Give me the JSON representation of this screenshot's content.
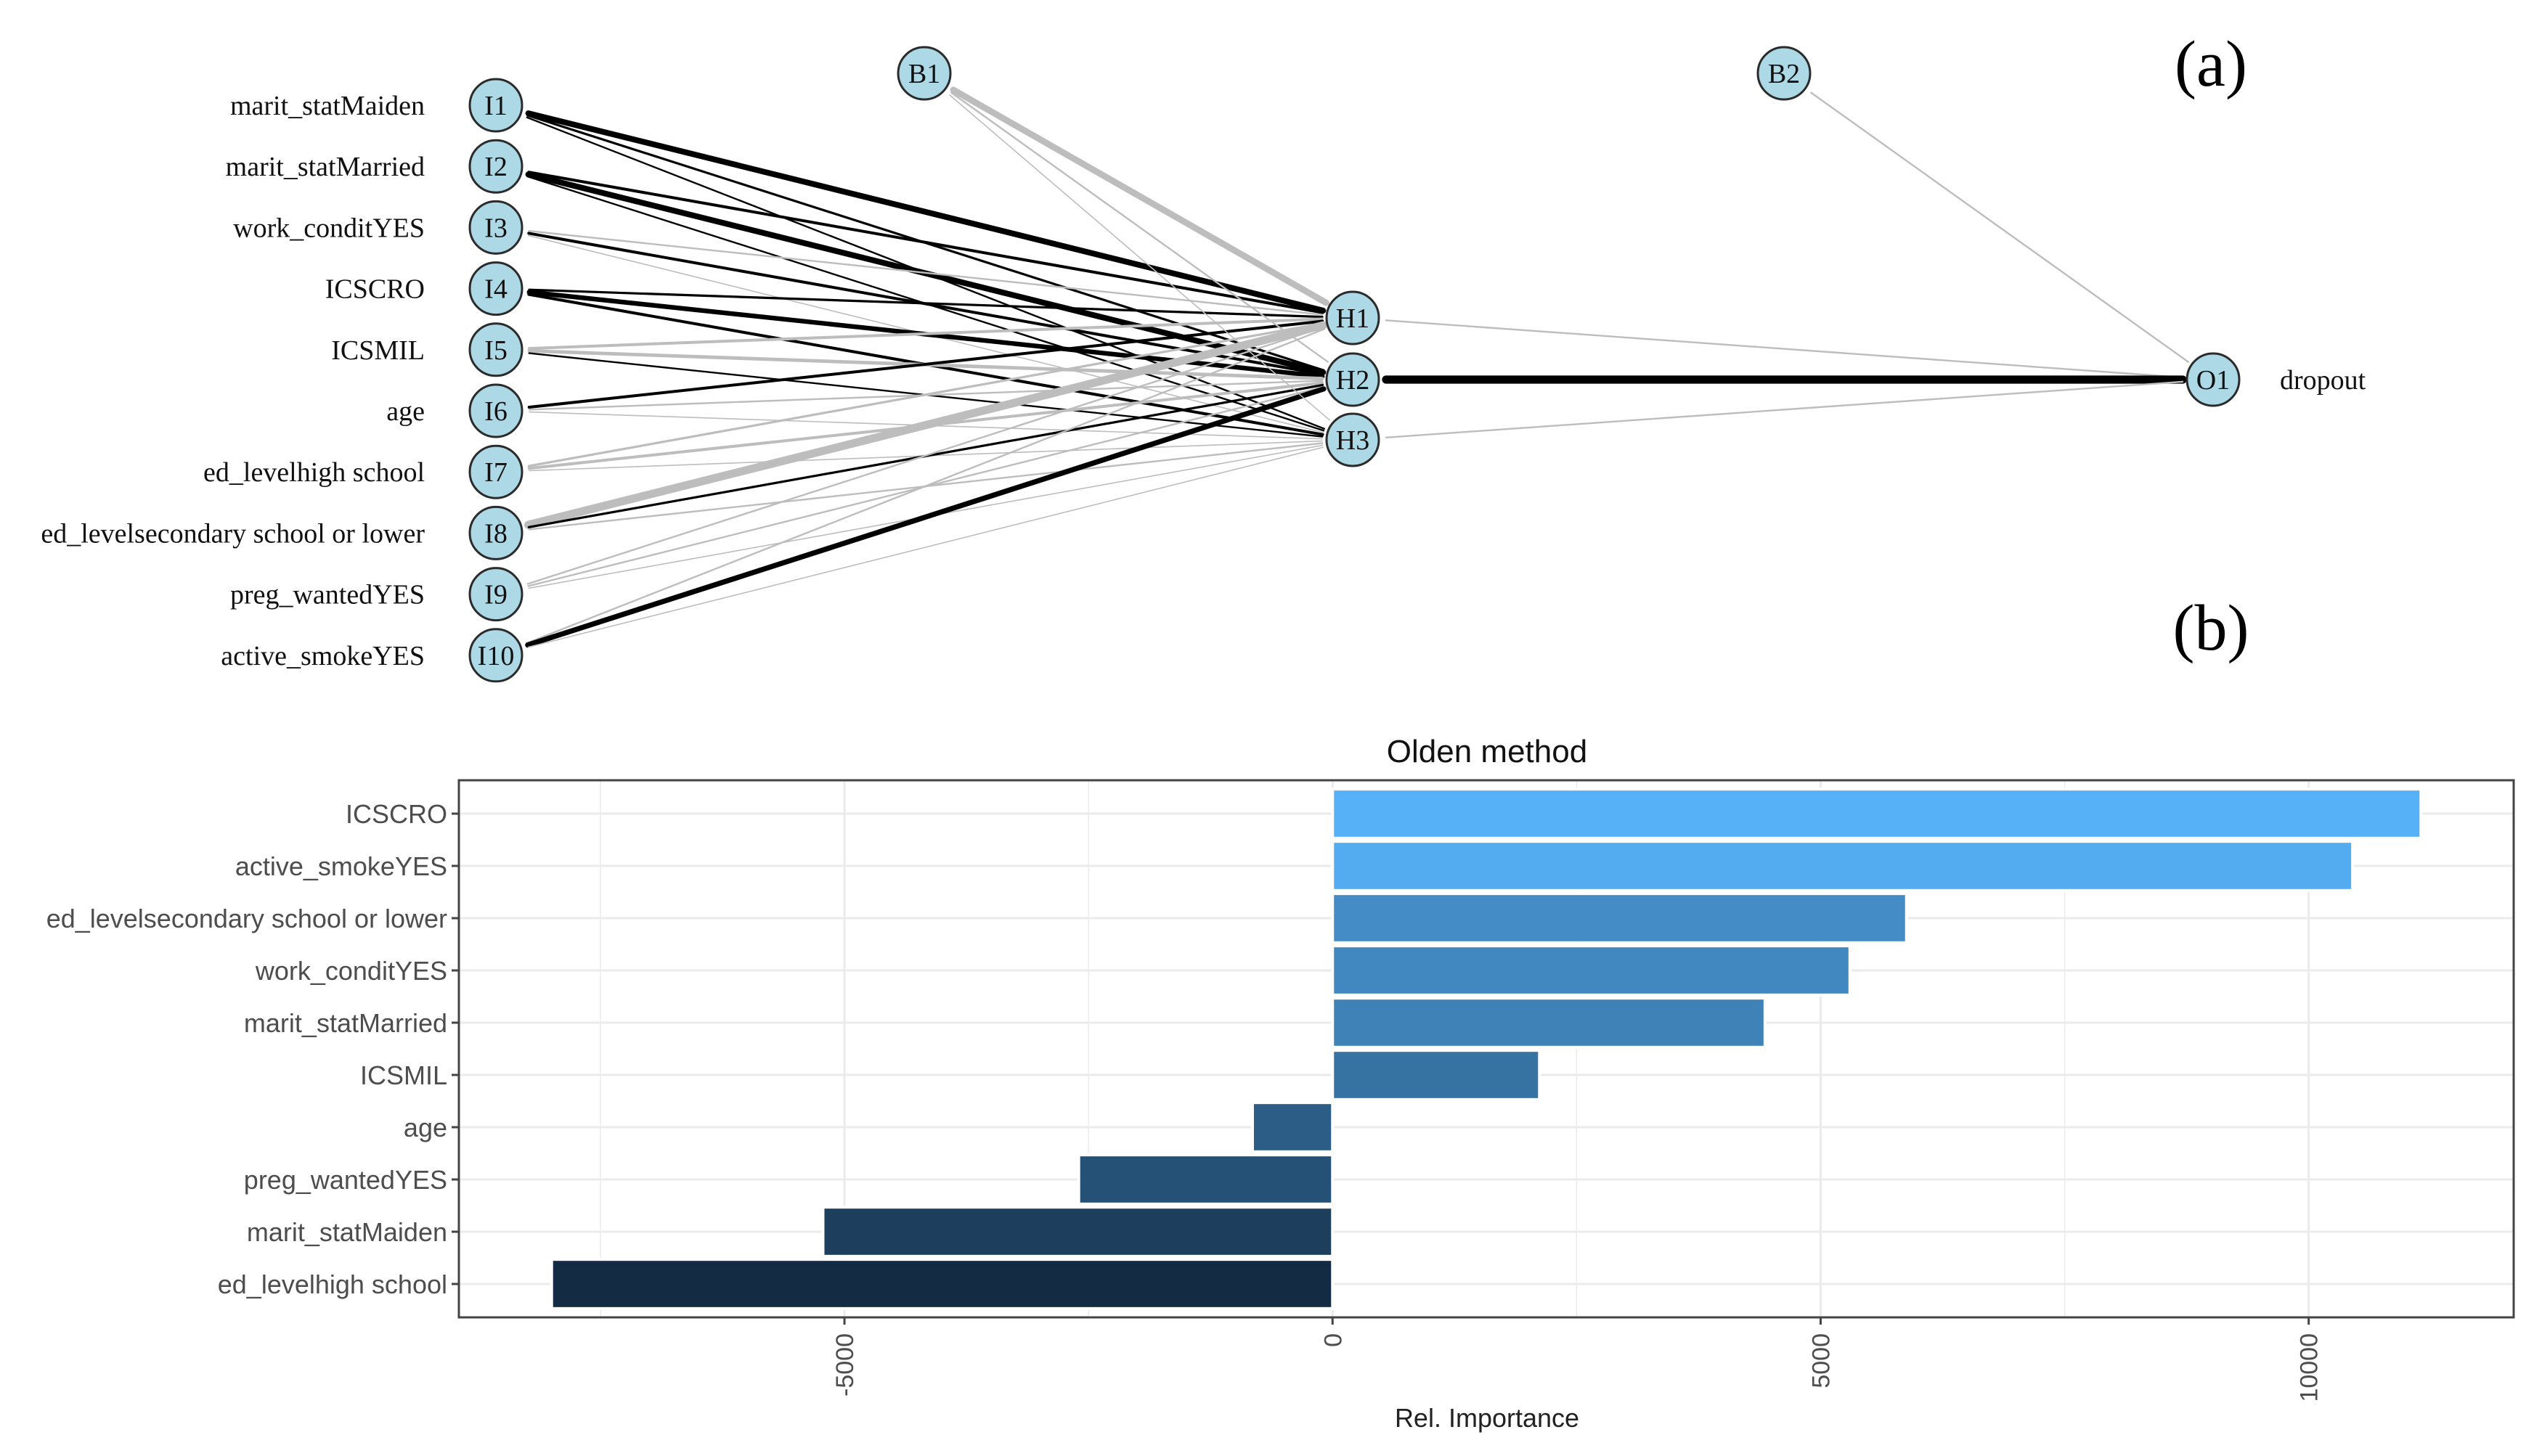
{
  "panel_labels": {
    "a": "(a)",
    "b": "(b)"
  },
  "chart_data": [
    {
      "type": "network",
      "title": "",
      "inputs": [
        {
          "id": "I1",
          "label": "marit_statMaiden"
        },
        {
          "id": "I2",
          "label": "marit_statMarried"
        },
        {
          "id": "I3",
          "label": "work_conditYES"
        },
        {
          "id": "I4",
          "label": "ICSCRO"
        },
        {
          "id": "I5",
          "label": "ICSMIL"
        },
        {
          "id": "I6",
          "label": "age"
        },
        {
          "id": "I7",
          "label": "ed_levelhigh school"
        },
        {
          "id": "I8",
          "label": "ed_levelsecondary school or lower"
        },
        {
          "id": "I9",
          "label": "preg_wantedYES"
        },
        {
          "id": "I10",
          "label": "active_smokeYES"
        }
      ],
      "hidden": [
        {
          "id": "H1"
        },
        {
          "id": "H2"
        },
        {
          "id": "H3"
        }
      ],
      "bias": [
        {
          "id": "B1"
        },
        {
          "id": "B2"
        }
      ],
      "output": {
        "id": "O1",
        "label": "dropout"
      },
      "connections": [
        {
          "from": "I1",
          "to": "H1",
          "weight": 1.0
        },
        {
          "from": "I1",
          "to": "H2",
          "weight": 0.4
        },
        {
          "from": "I1",
          "to": "H3",
          "weight": 0.3
        },
        {
          "from": "I2",
          "to": "H1",
          "weight": 0.5
        },
        {
          "from": "I2",
          "to": "H2",
          "weight": 1.0
        },
        {
          "from": "I2",
          "to": "H3",
          "weight": 0.3
        },
        {
          "from": "I3",
          "to": "H1",
          "weight": -0.3
        },
        {
          "from": "I3",
          "to": "H2",
          "weight": 0.5
        },
        {
          "from": "I3",
          "to": "H3",
          "weight": -0.2
        },
        {
          "from": "I4",
          "to": "H1",
          "weight": 0.4
        },
        {
          "from": "I4",
          "to": "H2",
          "weight": 0.8
        },
        {
          "from": "I4",
          "to": "H3",
          "weight": 0.5
        },
        {
          "from": "I5",
          "to": "H1",
          "weight": -0.5
        },
        {
          "from": "I5",
          "to": "H2",
          "weight": -0.6
        },
        {
          "from": "I5",
          "to": "H3",
          "weight": 0.3
        },
        {
          "from": "I6",
          "to": "H1",
          "weight": 0.5
        },
        {
          "from": "I6",
          "to": "H2",
          "weight": -0.3
        },
        {
          "from": "I6",
          "to": "H3",
          "weight": -0.2
        },
        {
          "from": "I7",
          "to": "H1",
          "weight": -0.4
        },
        {
          "from": "I7",
          "to": "H2",
          "weight": -0.5
        },
        {
          "from": "I7",
          "to": "H3",
          "weight": -0.2
        },
        {
          "from": "I8",
          "to": "H1",
          "weight": -1.4
        },
        {
          "from": "I8",
          "to": "H2",
          "weight": 0.4
        },
        {
          "from": "I8",
          "to": "H3",
          "weight": -0.3
        },
        {
          "from": "I9",
          "to": "H1",
          "weight": -0.3
        },
        {
          "from": "I9",
          "to": "H2",
          "weight": -0.3
        },
        {
          "from": "I9",
          "to": "H3",
          "weight": -0.2
        },
        {
          "from": "I10",
          "to": "H1",
          "weight": -0.3
        },
        {
          "from": "I10",
          "to": "H2",
          "weight": 0.9
        },
        {
          "from": "I10",
          "to": "H3",
          "weight": -0.2
        },
        {
          "from": "B1",
          "to": "H1",
          "weight": -1.1
        },
        {
          "from": "B1",
          "to": "H2",
          "weight": -0.3
        },
        {
          "from": "B1",
          "to": "H3",
          "weight": -0.2
        },
        {
          "from": "H1",
          "to": "O1",
          "weight": -0.3
        },
        {
          "from": "H2",
          "to": "O1",
          "weight": 1.4
        },
        {
          "from": "H3",
          "to": "O1",
          "weight": -0.3
        },
        {
          "from": "B2",
          "to": "O1",
          "weight": -0.3
        }
      ]
    },
    {
      "type": "bar",
      "orientation": "horizontal",
      "title": "Olden method",
      "xlabel": "Rel. Importance",
      "ylabel": "",
      "categories": [
        "ICSCRO",
        "active_smokeYES",
        "ed_levelsecondary school or lower",
        "work_conditYES",
        "marit_statMarried",
        "ICSMIL",
        "age",
        "preg_wantedYES",
        "marit_statMaiden",
        "ed_levelhigh school"
      ],
      "values": [
        11150,
        10450,
        5880,
        5300,
        4430,
        2120,
        -820,
        -2600,
        -5220,
        -8000
      ],
      "xlim": [
        -8950,
        12100
      ],
      "xticks": [
        -5000,
        0,
        5000,
        10000
      ],
      "xtick_labels": [
        "-5000",
        "0",
        "5000",
        "10000"
      ],
      "grid": true,
      "legend": "none",
      "color_scale": {
        "low": "#132b43",
        "high": "#56b1f7"
      }
    }
  ]
}
